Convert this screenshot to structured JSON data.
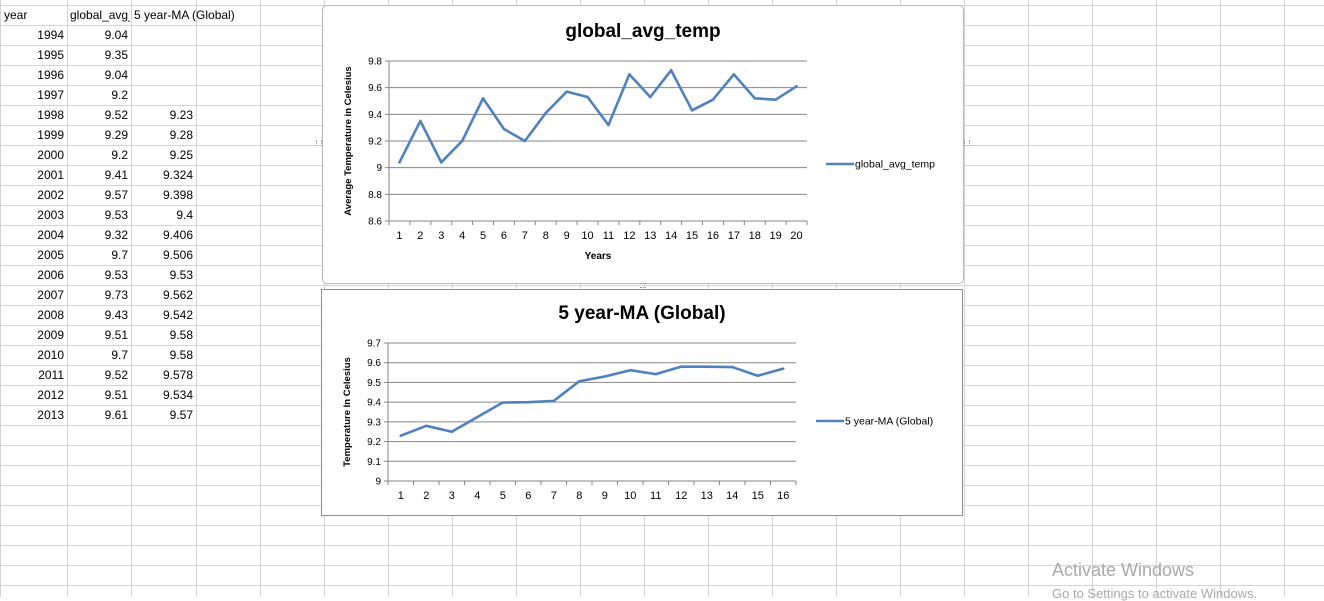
{
  "sheet": {
    "headers": [
      "year",
      "global_avg_temp",
      "5 year-MA (Global)"
    ],
    "rows": [
      [
        "1994",
        "9.04",
        ""
      ],
      [
        "1995",
        "9.35",
        ""
      ],
      [
        "1996",
        "9.04",
        ""
      ],
      [
        "1997",
        "9.2",
        ""
      ],
      [
        "1998",
        "9.52",
        "9.23"
      ],
      [
        "1999",
        "9.29",
        "9.28"
      ],
      [
        "2000",
        "9.2",
        "9.25"
      ],
      [
        "2001",
        "9.41",
        "9.324"
      ],
      [
        "2002",
        "9.57",
        "9.398"
      ],
      [
        "2003",
        "9.53",
        "9.4"
      ],
      [
        "2004",
        "9.32",
        "9.406"
      ],
      [
        "2005",
        "9.7",
        "9.506"
      ],
      [
        "2006",
        "9.53",
        "9.53"
      ],
      [
        "2007",
        "9.73",
        "9.562"
      ],
      [
        "2008",
        "9.43",
        "9.542"
      ],
      [
        "2009",
        "9.51",
        "9.58"
      ],
      [
        "2010",
        "9.7",
        "9.58"
      ],
      [
        "2011",
        "9.52",
        "9.578"
      ],
      [
        "2012",
        "9.51",
        "9.534"
      ],
      [
        "2013",
        "9.61",
        "9.57"
      ]
    ]
  },
  "chart_data": [
    {
      "type": "line",
      "title": "global_avg_temp",
      "xlabel": "Years",
      "ylabel": "Average Temperature in Celesius",
      "x": [
        1,
        2,
        3,
        4,
        5,
        6,
        7,
        8,
        9,
        10,
        11,
        12,
        13,
        14,
        15,
        16,
        17,
        18,
        19,
        20
      ],
      "ylim": [
        8.6,
        9.8
      ],
      "yticks": [
        "8.6",
        "8.8",
        "9",
        "9.2",
        "9.4",
        "9.6",
        "9.8"
      ],
      "grid": true,
      "legend": "right",
      "color": "#4f81bd",
      "series": [
        {
          "name": "global_avg_temp",
          "values": [
            9.04,
            9.35,
            9.04,
            9.2,
            9.52,
            9.29,
            9.2,
            9.41,
            9.57,
            9.53,
            9.32,
            9.7,
            9.53,
            9.73,
            9.43,
            9.51,
            9.7,
            9.52,
            9.51,
            9.61
          ]
        }
      ]
    },
    {
      "type": "line",
      "title": "5 year-MA (Global)",
      "xlabel": "",
      "ylabel": "Temperature In Celesius",
      "x": [
        1,
        2,
        3,
        4,
        5,
        6,
        7,
        8,
        9,
        10,
        11,
        12,
        13,
        14,
        15,
        16
      ],
      "ylim": [
        9.0,
        9.7
      ],
      "yticks": [
        "9",
        "9.1",
        "9.2",
        "9.3",
        "9.4",
        "9.5",
        "9.6",
        "9.7"
      ],
      "grid": true,
      "legend": "right",
      "color": "#4f81bd",
      "series": [
        {
          "name": "5 year-MA (Global)",
          "values": [
            9.23,
            9.28,
            9.25,
            9.324,
            9.398,
            9.4,
            9.406,
            9.506,
            9.53,
            9.562,
            9.542,
            9.58,
            9.58,
            9.578,
            9.534,
            9.57
          ]
        }
      ]
    }
  ],
  "watermark": {
    "line1": "Activate Windows",
    "line2": "Go to Settings to activate Windows."
  }
}
